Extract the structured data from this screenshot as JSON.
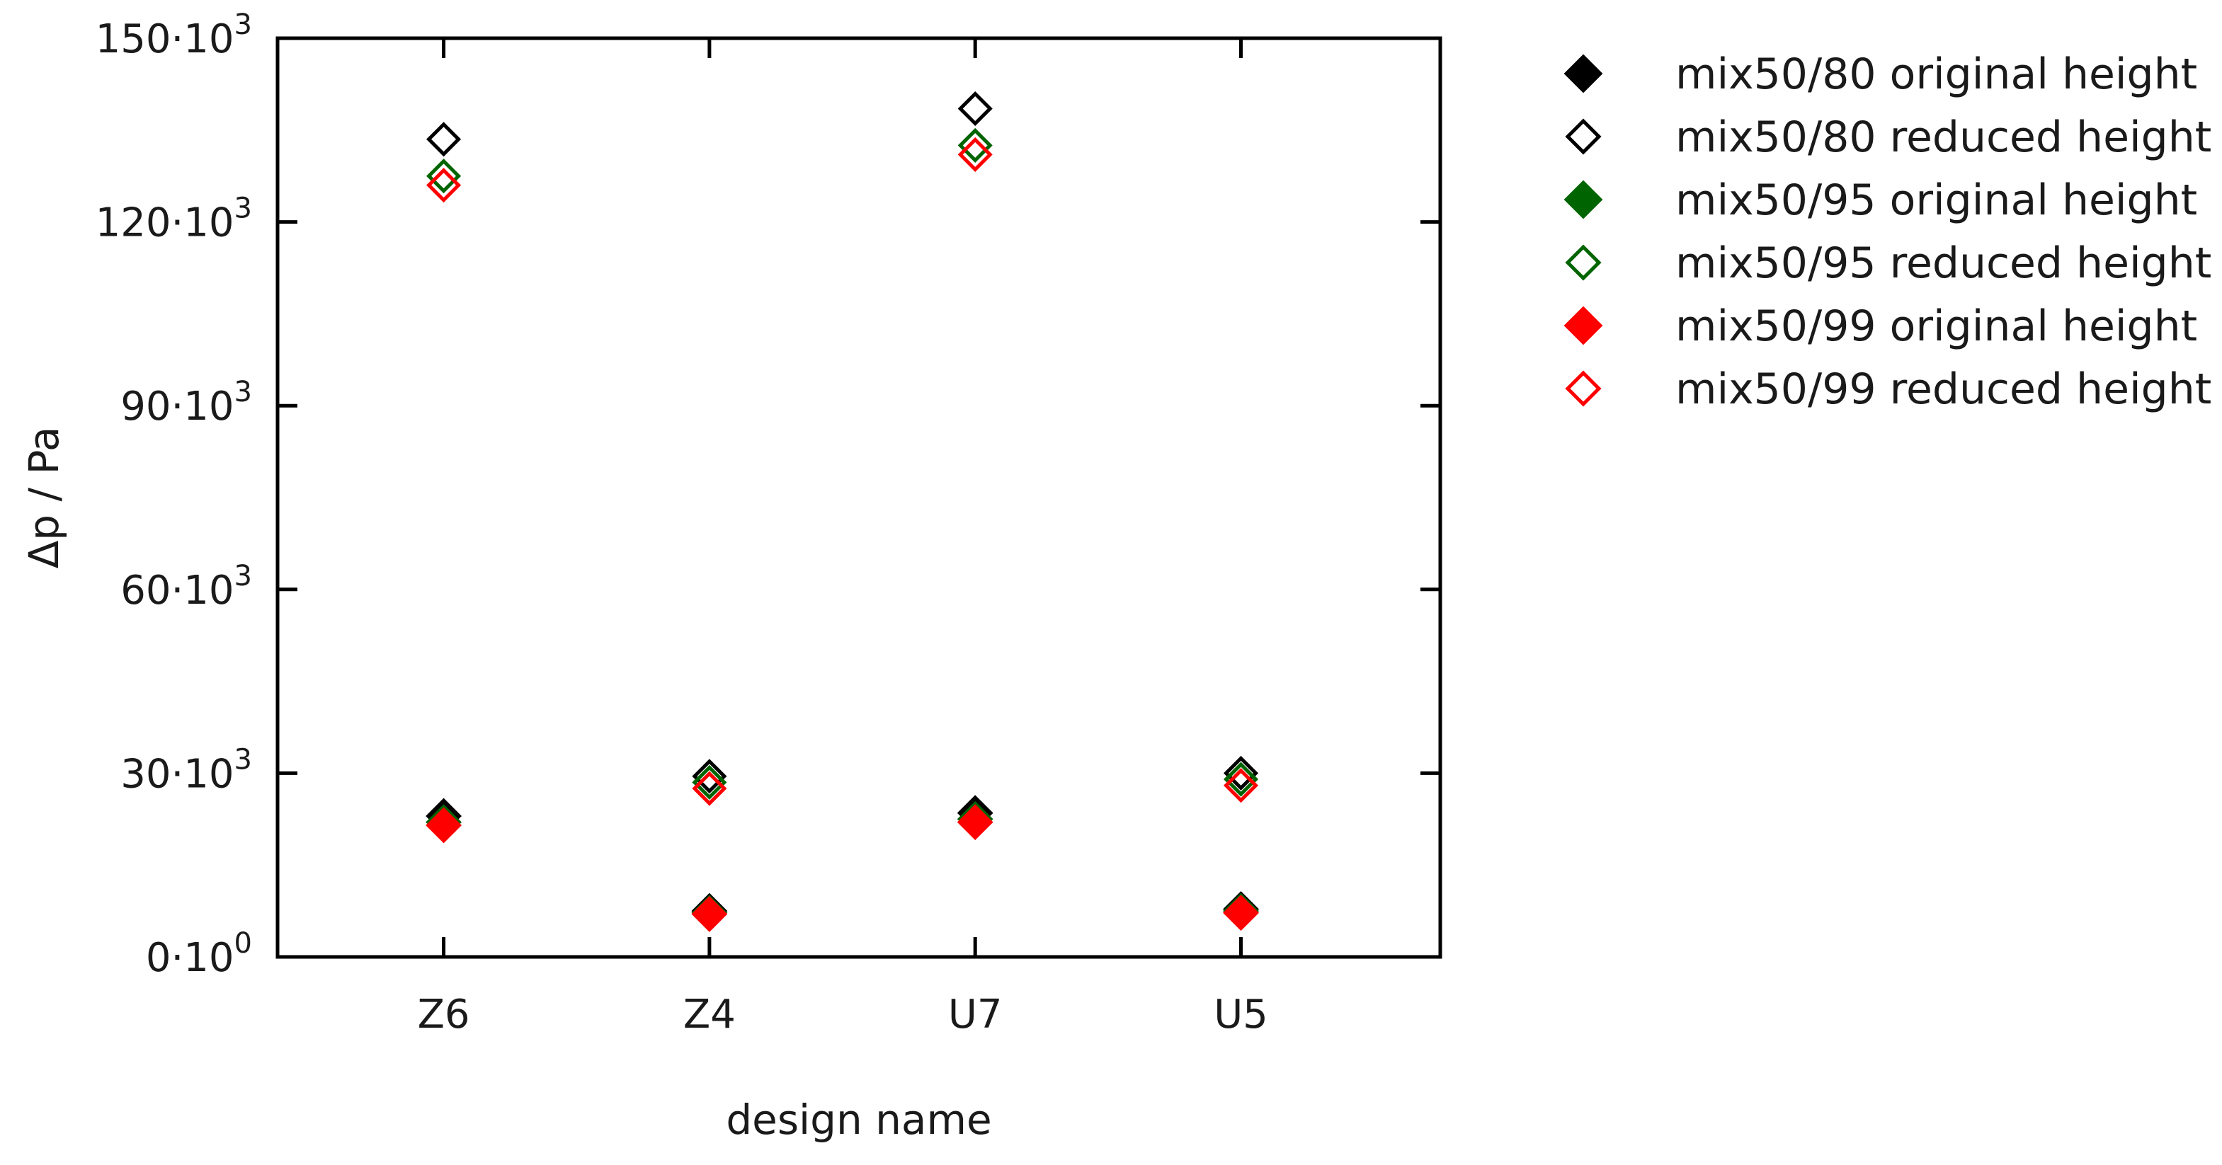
{
  "chart_data": {
    "type": "scatter",
    "title": "",
    "xlabel": "design name",
    "ylabel": "Δp / Pa",
    "categories": [
      "Z6",
      "Z4",
      "U7",
      "U5"
    ],
    "ylim": [
      0,
      150000
    ],
    "y_ticks": [
      {
        "value": 0,
        "mantissa": "0·10",
        "exp": "0"
      },
      {
        "value": 30000,
        "mantissa": "30·10",
        "exp": "3"
      },
      {
        "value": 60000,
        "mantissa": "60·10",
        "exp": "3"
      },
      {
        "value": 90000,
        "mantissa": "90·10",
        "exp": "3"
      },
      {
        "value": 120000,
        "mantissa": "120·10",
        "exp": "3"
      },
      {
        "value": 150000,
        "mantissa": "150·10",
        "exp": "3"
      }
    ],
    "grid": false,
    "legend_position": "outside-right",
    "marker": "diamond",
    "series": [
      {
        "name": "mix50/80 original height",
        "color": "#000000",
        "filled": true,
        "values": [
          23000,
          7500,
          23500,
          7800
        ]
      },
      {
        "name": "mix50/80 reduced height",
        "color": "#000000",
        "filled": false,
        "values": [
          133500,
          29500,
          138500,
          30000
        ]
      },
      {
        "name": "mix50/95 original height",
        "color": "#006400",
        "filled": true,
        "values": [
          22000,
          7200,
          22500,
          7500
        ]
      },
      {
        "name": "mix50/95 reduced height",
        "color": "#006400",
        "filled": false,
        "values": [
          127500,
          28500,
          132500,
          29000
        ]
      },
      {
        "name": "mix50/99 original height",
        "color": "#ff0000",
        "filled": true,
        "values": [
          21500,
          7000,
          22000,
          7200
        ]
      },
      {
        "name": "mix50/99 reduced height",
        "color": "#ff0000",
        "filled": false,
        "values": [
          126000,
          27500,
          131000,
          28000
        ]
      }
    ]
  }
}
